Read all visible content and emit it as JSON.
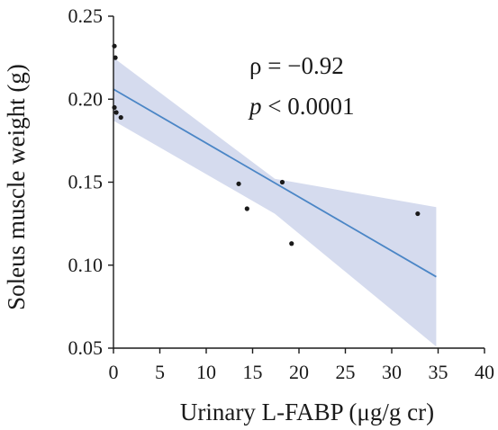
{
  "chart_data": {
    "type": "scatter",
    "xlabel": "Urinary L-FABP (μg/g cr)",
    "ylabel": "Soleus muscle weight (g)",
    "xlim": [
      0,
      40
    ],
    "ylim": [
      0.05,
      0.25
    ],
    "x_ticks": [
      "0",
      "5",
      "10",
      "15",
      "20",
      "25",
      "30",
      "35",
      "40"
    ],
    "y_ticks": [
      "0.05",
      "0.10",
      "0.15",
      "0.20",
      "0.25"
    ],
    "grid": false,
    "legend": "none",
    "points": [
      {
        "x": 0.1,
        "y": 0.232
      },
      {
        "x": 0.2,
        "y": 0.225
      },
      {
        "x": 0.1,
        "y": 0.195
      },
      {
        "x": 0.3,
        "y": 0.192
      },
      {
        "x": 0.8,
        "y": 0.189
      },
      {
        "x": 13.5,
        "y": 0.149
      },
      {
        "x": 14.4,
        "y": 0.134
      },
      {
        "x": 18.2,
        "y": 0.15
      },
      {
        "x": 19.2,
        "y": 0.113
      },
      {
        "x": 32.8,
        "y": 0.131
      }
    ],
    "regression": {
      "x": [
        0,
        34.8
      ],
      "y": [
        0.206,
        0.093
      ]
    },
    "confidence_band": {
      "x": [
        0,
        17.4,
        34.8
      ],
      "upper": [
        0.225,
        0.152,
        0.135
      ],
      "lower": [
        0.187,
        0.131,
        0.051
      ]
    },
    "annotations": [
      {
        "symbol": "ρ",
        "text": " = −0.92"
      },
      {
        "symbol": "p",
        "text": " < 0.0001"
      }
    ],
    "colors": {
      "band": "#d5dbee",
      "line": "#4b86c6",
      "points": "#1a1a1a",
      "axis": "#1a1a1a"
    }
  }
}
